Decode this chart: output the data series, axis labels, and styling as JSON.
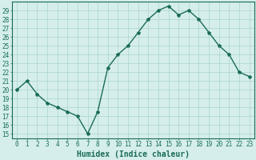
{
  "xlabel": "Humidex (Indice chaleur)",
  "x": [
    0,
    1,
    2,
    3,
    4,
    5,
    6,
    7,
    8,
    9,
    10,
    11,
    12,
    13,
    14,
    15,
    16,
    17,
    18,
    19,
    20,
    21,
    22,
    23
  ],
  "y": [
    20,
    21,
    19.5,
    18.5,
    18,
    17.5,
    17,
    15,
    17.5,
    22.5,
    24,
    25,
    26.5,
    28,
    29,
    29.5,
    28.5,
    29,
    28,
    26.5,
    25,
    24,
    22,
    21.5
  ],
  "line_color": "#1a6b5a",
  "marker": "*",
  "marker_size": 3,
  "bg_color": "#d5eeeb",
  "grid_color": "#aad4ce",
  "tick_color": "#1a6b5a",
  "label_color": "#1a6b5a",
  "ylim_min": 14.5,
  "ylim_max": 30.0,
  "xlim_min": -0.5,
  "xlim_max": 23.5,
  "yticks": [
    15,
    16,
    17,
    18,
    19,
    20,
    21,
    22,
    23,
    24,
    25,
    26,
    27,
    28,
    29
  ],
  "xticks": [
    0,
    1,
    2,
    3,
    4,
    5,
    6,
    7,
    8,
    9,
    10,
    11,
    12,
    13,
    14,
    15,
    16,
    17,
    18,
    19,
    20,
    21,
    22,
    23
  ],
  "xlabel_fontsize": 7,
  "tick_fontsize": 5.5,
  "linewidth": 1.0
}
